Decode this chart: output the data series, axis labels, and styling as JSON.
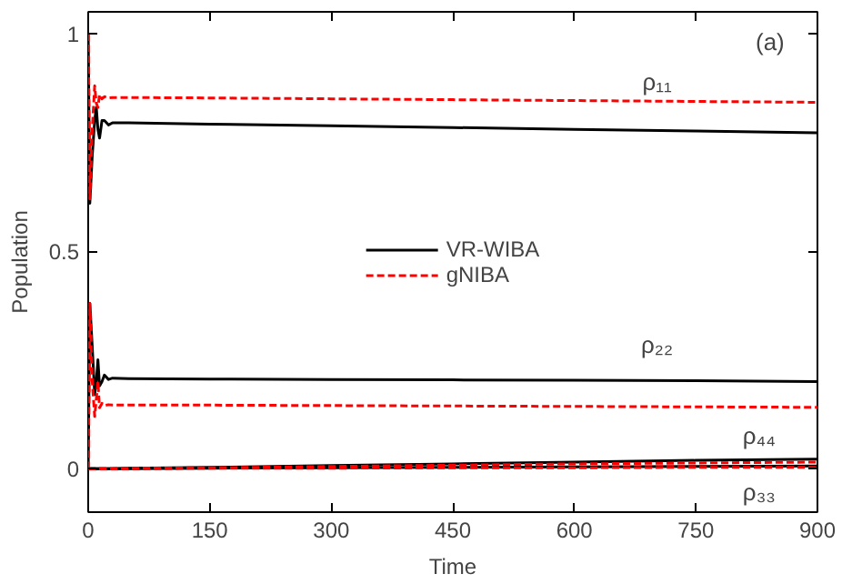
{
  "chart_data": {
    "type": "line",
    "xlabel": "Time",
    "ylabel": "Population",
    "x": [
      0,
      2,
      5,
      8,
      10,
      12,
      14,
      17,
      20,
      25,
      30,
      50,
      150,
      300,
      450,
      600,
      750,
      900
    ],
    "series": [
      {
        "name": "VR-WIBA",
        "color": "#000000",
        "line_style": "solid",
        "values": [
          1.0,
          0.61,
          0.72,
          0.8,
          0.83,
          0.78,
          0.76,
          0.8,
          0.8,
          0.79,
          0.795,
          0.795,
          0.792,
          0.788,
          0.784,
          0.78,
          0.776,
          0.772
        ]
      },
      {
        "color": "#000000",
        "line_style": "solid",
        "values": [
          0.0,
          0.38,
          0.28,
          0.17,
          0.2,
          0.25,
          0.19,
          0.2,
          0.215,
          0.205,
          0.208,
          0.207,
          0.206,
          0.205,
          0.204,
          0.203,
          0.202,
          0.2
        ]
      },
      {
        "color": "#000000",
        "line_style": "solid",
        "values": [
          0.0,
          0.0,
          0.0,
          0.0,
          0.0,
          0.0,
          0.0,
          0.0,
          0.0,
          0.0,
          0.0,
          0.0,
          0.001,
          0.002,
          0.003,
          0.004,
          0.005,
          0.006
        ]
      },
      {
        "color": "#000000",
        "line_style": "solid",
        "values": [
          0.0,
          0.0,
          0.0,
          0.0,
          0.0,
          0.0,
          0.0,
          0.0,
          0.0,
          0.0,
          0.0,
          0.001,
          0.003,
          0.007,
          0.011,
          0.015,
          0.019,
          0.022
        ]
      },
      {
        "name": "gNIBA",
        "color": "#ff0000",
        "line_style": "dashed",
        "values": [
          1.0,
          0.62,
          0.78,
          0.88,
          0.84,
          0.83,
          0.86,
          0.85,
          0.855,
          0.852,
          0.853,
          0.853,
          0.852,
          0.85,
          0.848,
          0.846,
          0.844,
          0.842
        ]
      },
      {
        "color": "#ff0000",
        "line_style": "dashed",
        "values": [
          0.0,
          0.38,
          0.2,
          0.12,
          0.16,
          0.2,
          0.14,
          0.15,
          0.145,
          0.147,
          0.146,
          0.146,
          0.146,
          0.145,
          0.144,
          0.143,
          0.142,
          0.141
        ]
      },
      {
        "color": "#ff0000",
        "line_style": "dashed",
        "values": [
          0.0,
          0.0,
          0.0,
          0.0,
          0.0,
          0.0,
          0.0,
          0.0,
          0.0,
          0.0,
          0.0,
          0.0,
          0.001,
          0.001,
          0.002,
          0.002,
          0.003,
          0.003
        ]
      },
      {
        "color": "#ff0000",
        "line_style": "dashed",
        "values": [
          0.0,
          0.0,
          0.0,
          0.0,
          0.0,
          0.0,
          0.0,
          0.0,
          0.0,
          0.0,
          0.0,
          0.001,
          0.002,
          0.005,
          0.008,
          0.011,
          0.013,
          0.015
        ]
      }
    ],
    "xlim": [
      0,
      900
    ],
    "ylim": [
      -0.1,
      1.05
    ],
    "xticks": [
      0,
      150,
      300,
      450,
      600,
      750,
      900
    ],
    "yticks": [
      0,
      0.5,
      1
    ],
    "annotations": [
      "(a)",
      "ρ₁₁",
      "ρ₂₂",
      "ρ₄₄",
      "ρ₃₃"
    ],
    "legend": "center",
    "grid": false
  }
}
